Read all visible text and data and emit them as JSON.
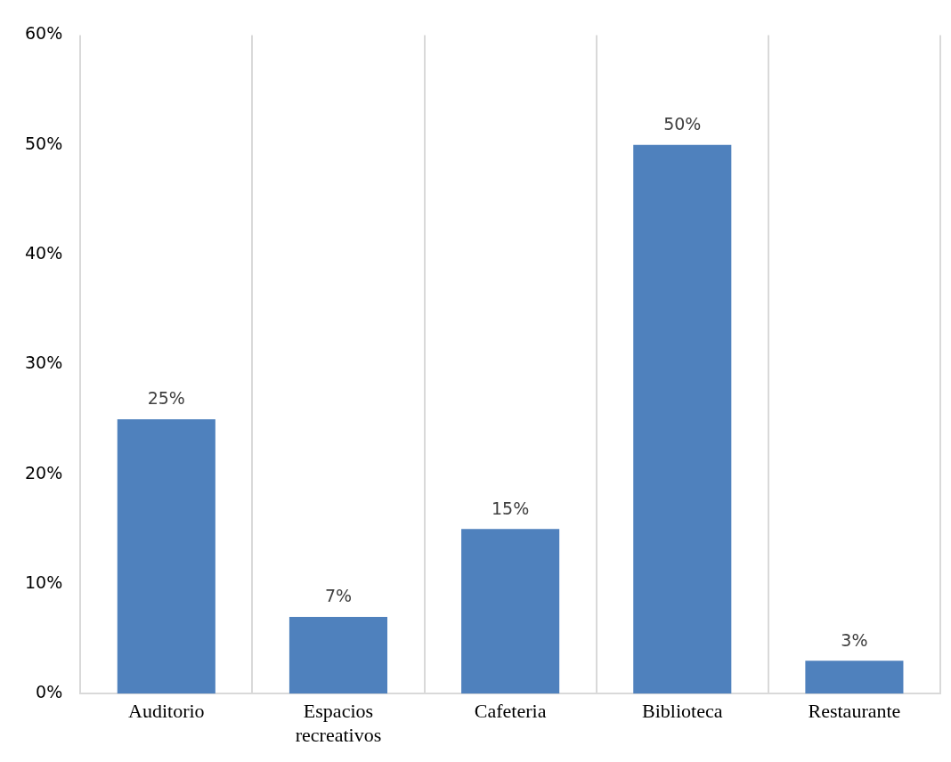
{
  "chart_data": {
    "type": "bar",
    "categories": [
      "Auditorio",
      "Espacios recreativos",
      "Cafeteria",
      "Biblioteca",
      "Restaurante"
    ],
    "series": [
      {
        "color": "#4f81bd",
        "values": [
          25,
          7,
          15,
          50,
          3
        ],
        "value_labels": [
          "25%",
          "7%",
          "15%",
          "50%",
          "3%"
        ]
      }
    ],
    "ylim": [
      0,
      60
    ],
    "yticks": [
      {
        "value": 0,
        "label": "0%"
      },
      {
        "value": 10,
        "label": "10%"
      },
      {
        "value": 20,
        "label": "20%"
      },
      {
        "value": 30,
        "label": "30%"
      },
      {
        "value": 40,
        "label": "40%"
      },
      {
        "value": 50,
        "label": "50%"
      },
      {
        "value": 60,
        "label": "60%"
      }
    ],
    "grid": "x",
    "legend": false
  }
}
